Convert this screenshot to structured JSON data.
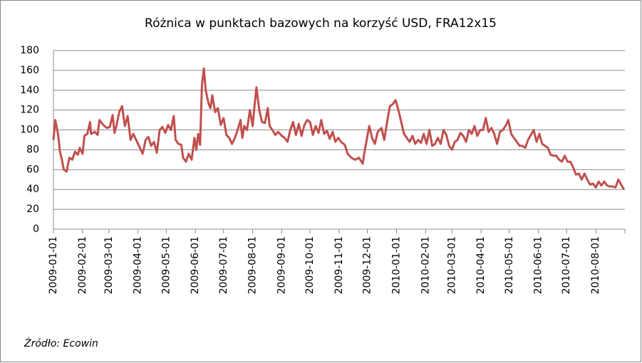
{
  "chart_data": {
    "type": "line",
    "title": "Różnica w punktach bazowych na korzyść USD, FRA12x15",
    "source": "Źródło: Ecowin",
    "x": [
      "2009-01-01",
      "2009-01-03",
      "2009-01-06",
      "2009-01-08",
      "2009-01-10",
      "2009-01-12",
      "2009-01-15",
      "2009-01-18",
      "2009-01-21",
      "2009-01-24",
      "2009-01-27",
      "2009-01-29",
      "2009-02-01",
      "2009-02-03",
      "2009-02-06",
      "2009-02-09",
      "2009-02-10",
      "2009-02-14",
      "2009-02-17",
      "2009-02-19",
      "2009-02-23",
      "2009-02-27",
      "2009-03-02",
      "2009-03-05",
      "2009-03-07",
      "2009-03-09",
      "2009-03-12",
      "2009-03-15",
      "2009-03-18",
      "2009-03-21",
      "2009-03-24",
      "2009-03-27",
      "2009-03-31",
      "2009-04-03",
      "2009-04-06",
      "2009-04-09",
      "2009-04-12",
      "2009-04-15",
      "2009-04-18",
      "2009-04-21",
      "2009-04-24",
      "2009-04-27",
      "2009-04-30",
      "2009-05-03",
      "2009-05-06",
      "2009-05-09",
      "2009-05-11",
      "2009-05-14",
      "2009-05-17",
      "2009-05-19",
      "2009-05-22",
      "2009-05-25",
      "2009-05-28",
      "2009-05-31",
      "2009-06-02",
      "2009-06-04",
      "2009-06-06",
      "2009-06-08",
      "2009-06-10",
      "2009-06-12",
      "2009-06-15",
      "2009-06-17",
      "2009-06-19",
      "2009-06-22",
      "2009-06-25",
      "2009-06-28",
      "2009-07-01",
      "2009-07-04",
      "2009-07-07",
      "2009-07-10",
      "2009-07-13",
      "2009-07-16",
      "2009-07-19",
      "2009-07-21",
      "2009-07-23",
      "2009-07-26",
      "2009-07-29",
      "2009-08-01",
      "2009-08-03",
      "2009-08-05",
      "2009-08-08",
      "2009-08-11",
      "2009-08-14",
      "2009-08-17",
      "2009-08-19",
      "2009-08-22",
      "2009-08-25",
      "2009-08-28",
      "2009-09-01",
      "2009-09-04",
      "2009-09-07",
      "2009-09-10",
      "2009-09-13",
      "2009-09-16",
      "2009-09-19",
      "2009-09-22",
      "2009-09-25",
      "2009-09-28",
      "2009-10-01",
      "2009-10-04",
      "2009-10-07",
      "2009-10-10",
      "2009-10-13",
      "2009-10-16",
      "2009-10-19",
      "2009-10-22",
      "2009-10-25",
      "2009-10-28",
      "2009-10-31",
      "2009-11-03",
      "2009-11-07",
      "2009-11-10",
      "2009-11-14",
      "2009-11-18",
      "2009-11-22",
      "2009-11-26",
      "2009-11-28",
      "2009-12-03",
      "2009-12-06",
      "2009-12-09",
      "2009-12-12",
      "2009-12-16",
      "2009-12-19",
      "2009-12-22",
      "2009-12-25",
      "2009-12-28",
      "2009-12-31",
      "2010-01-03",
      "2010-01-06",
      "2010-01-09",
      "2010-01-12",
      "2010-01-15",
      "2010-01-18",
      "2010-01-21",
      "2010-01-24",
      "2010-01-27",
      "2010-01-30",
      "2010-02-02",
      "2010-02-05",
      "2010-02-08",
      "2010-02-11",
      "2010-02-14",
      "2010-02-17",
      "2010-02-20",
      "2010-02-23",
      "2010-02-26",
      "2010-03-01",
      "2010-03-04",
      "2010-03-07",
      "2010-03-10",
      "2010-03-13",
      "2010-03-16",
      "2010-03-19",
      "2010-03-22",
      "2010-03-25",
      "2010-03-28",
      "2010-03-31",
      "2010-04-03",
      "2010-04-06",
      "2010-04-09",
      "2010-04-12",
      "2010-04-15",
      "2010-04-18",
      "2010-04-21",
      "2010-04-24",
      "2010-04-27",
      "2010-04-30",
      "2010-05-03",
      "2010-05-06",
      "2010-05-09",
      "2010-05-12",
      "2010-05-15",
      "2010-05-18",
      "2010-05-21",
      "2010-05-24",
      "2010-05-27",
      "2010-05-30",
      "2010-06-02",
      "2010-06-05",
      "2010-06-08",
      "2010-06-11",
      "2010-06-14",
      "2010-06-17",
      "2010-06-20",
      "2010-06-23",
      "2010-06-26",
      "2010-06-29",
      "2010-07-02",
      "2010-07-05",
      "2010-07-08",
      "2010-07-11",
      "2010-07-14",
      "2010-07-17",
      "2010-07-20",
      "2010-07-23",
      "2010-07-26",
      "2010-07-29",
      "2010-08-01",
      "2010-08-04",
      "2010-08-07",
      "2010-08-10",
      "2010-08-13",
      "2010-08-16",
      "2010-08-19",
      "2010-08-22",
      "2010-08-25",
      "2010-08-28",
      "2010-08-31"
    ],
    "series": [
      {
        "name": "FRA12x15",
        "color": "#c0504d",
        "values": [
          90,
          110,
          95,
          78,
          70,
          60,
          58,
          72,
          70,
          78,
          75,
          82,
          76,
          94,
          96,
          108,
          96,
          98,
          95,
          110,
          105,
          102,
          103,
          115,
          97,
          104,
          118,
          124,
          104,
          114,
          90,
          96,
          88,
          82,
          76,
          90,
          93,
          84,
          88,
          77,
          100,
          103,
          97,
          105,
          100,
          114,
          90,
          86,
          85,
          72,
          68,
          76,
          70,
          92,
          80,
          96,
          85,
          145,
          162,
          140,
          127,
          122,
          135,
          118,
          122,
          105,
          112,
          95,
          92,
          86,
          92,
          100,
          110,
          92,
          104,
          100,
          120,
          104,
          125,
          143,
          120,
          108,
          107,
          122,
          104,
          100,
          95,
          98,
          94,
          92,
          88,
          100,
          108,
          95,
          106,
          94,
          105,
          110,
          108,
          95,
          104,
          97,
          110,
          96,
          99,
          91,
          98,
          88,
          92,
          88,
          85,
          76,
          72,
          70,
          72,
          66,
          78,
          104,
          92,
          86,
          98,
          102,
          90,
          108,
          124,
          126,
          130,
          120,
          108,
          96,
          92,
          88,
          94,
          86,
          90,
          87,
          96,
          86,
          100,
          84,
          86,
          92,
          86,
          100,
          95,
          84,
          80,
          88,
          90,
          97,
          94,
          88,
          100,
          96,
          104,
          94,
          100,
          100,
          112,
          98,
          102,
          96,
          86,
          98,
          100,
          104,
          110,
          96,
          92,
          88,
          84,
          84,
          82,
          90,
          95,
          100,
          88,
          96,
          86,
          84,
          82,
          75,
          74,
          74,
          70,
          68,
          74,
          68,
          68,
          62,
          55,
          56,
          50,
          56,
          50,
          45,
          46,
          42,
          48,
          44,
          48,
          44,
          43,
          43,
          42,
          50,
          45,
          40
        ]
      }
    ],
    "xlim": [
      "2009-01-01",
      "2010-09-01"
    ],
    "xticks": [
      "2009-01-01",
      "2009-02-01",
      "2009-03-01",
      "2009-04-01",
      "2009-05-01",
      "2009-06-01",
      "2009-07-01",
      "2009-08-01",
      "2009-09-01",
      "2009-10-01",
      "2009-11-01",
      "2009-12-01",
      "2010-01-01",
      "2010-02-01",
      "2010-03-01",
      "2010-04-01",
      "2010-05-01",
      "2010-06-01",
      "2010-07-01",
      "2010-08-01"
    ],
    "ylim": [
      0,
      180
    ],
    "yticks": [
      0,
      20,
      40,
      60,
      80,
      100,
      120,
      140,
      160,
      180
    ],
    "grid": true
  }
}
